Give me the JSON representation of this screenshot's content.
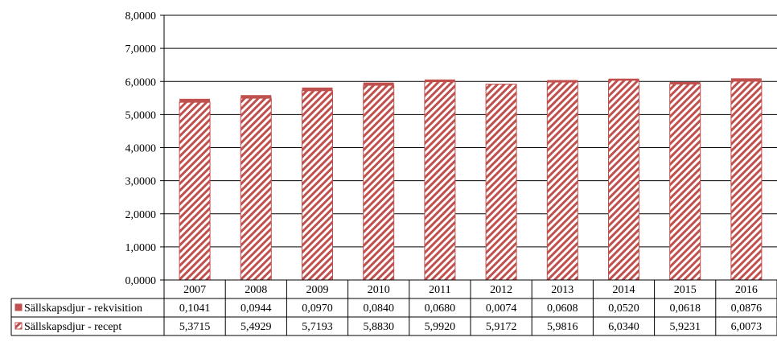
{
  "chart_data": {
    "type": "bar",
    "stacked": true,
    "categories": [
      "2007",
      "2008",
      "2009",
      "2010",
      "2011",
      "2012",
      "2013",
      "2014",
      "2015",
      "2016"
    ],
    "series": [
      {
        "name": "Sällskapsdjur - rekvisition",
        "values": [
          0.1041,
          0.0944,
          0.097,
          0.084,
          0.068,
          0.0074,
          0.0608,
          0.052,
          0.0618,
          0.0876
        ],
        "labels": [
          "0,1041",
          "0,0944",
          "0,0970",
          "0,0840",
          "0,0680",
          "0,0074",
          "0,0608",
          "0,0520",
          "0,0618",
          "0,0876"
        ],
        "color": "#c0504d",
        "fill": "solid"
      },
      {
        "name": "Sällskapsdjur - recept",
        "values": [
          5.3715,
          5.4929,
          5.7193,
          5.883,
          5.992,
          5.9172,
          5.9816,
          6.034,
          5.9231,
          6.0073
        ],
        "labels": [
          "5,3715",
          "5,4929",
          "5,7193",
          "5,8830",
          "5,9920",
          "5,9172",
          "5,9816",
          "6,0340",
          "5,9231",
          "6,0073"
        ],
        "color": "#c0504d",
        "fill": "diagonal-hatch"
      }
    ],
    "y_ticks": [
      "0,0000",
      "1,0000",
      "2,0000",
      "3,0000",
      "4,0000",
      "5,0000",
      "6,0000",
      "7,0000",
      "8,0000"
    ],
    "ylim": [
      0,
      8
    ],
    "grid": true,
    "legend": "data-table-left",
    "data_table": true
  }
}
